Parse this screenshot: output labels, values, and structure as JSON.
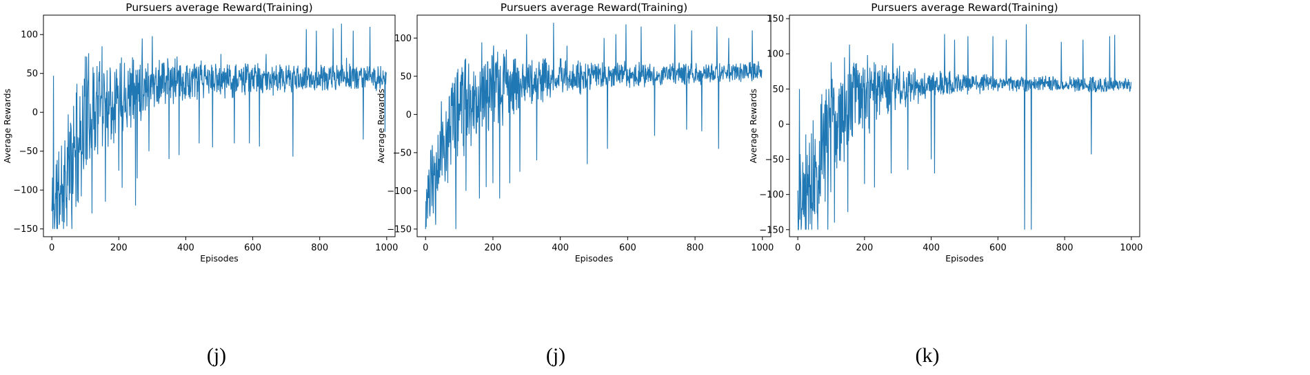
{
  "figure": {
    "panel_captions": [
      "(j)",
      "(j)",
      "(k)"
    ],
    "line_color": "#1f77b4"
  },
  "chart_data": [
    {
      "type": "line",
      "title": "Pursuers average Reward(Training)",
      "xlabel": "Episodes",
      "ylabel": "Average Rewards",
      "xlim": [
        -25,
        1025
      ],
      "ylim": [
        -160,
        125
      ],
      "xticks": [
        0,
        200,
        400,
        600,
        800,
        1000
      ],
      "yticks": [
        -150,
        -100,
        -50,
        0,
        50,
        100
      ],
      "grid": false,
      "legend": "none",
      "series": [
        {
          "anchors": [
            [
              0,
              -130
            ],
            [
              20,
              -110
            ],
            [
              40,
              -85
            ],
            [
              60,
              -60
            ],
            [
              80,
              -35
            ],
            [
              100,
              -10
            ],
            [
              120,
              5
            ],
            [
              150,
              15
            ],
            [
              200,
              25
            ],
            [
              250,
              32
            ],
            [
              300,
              38
            ],
            [
              350,
              40
            ],
            [
              400,
              40
            ],
            [
              500,
              42
            ],
            [
              600,
              43
            ],
            [
              700,
              42
            ],
            [
              800,
              44
            ],
            [
              900,
              45
            ],
            [
              1000,
              44
            ]
          ],
          "noise": [
            [
              0,
              60
            ],
            [
              100,
              65
            ],
            [
              200,
              45
            ],
            [
              300,
              28
            ],
            [
              500,
              18
            ],
            [
              700,
              15
            ],
            [
              1000,
              12
            ]
          ],
          "spikes": [
            [
              5,
              47
            ],
            [
              60,
              40
            ],
            [
              100,
              72
            ],
            [
              150,
              85
            ],
            [
              255,
              108
            ],
            [
              270,
              95
            ],
            [
              290,
              105
            ],
            [
              300,
              98
            ],
            [
              330,
              60
            ],
            [
              440,
              -40
            ],
            [
              505,
              75
            ],
            [
              545,
              -40
            ],
            [
              590,
              -40
            ],
            [
              620,
              -44
            ],
            [
              640,
              75
            ],
            [
              700,
              60
            ],
            [
              720,
              -57
            ],
            [
              760,
              107
            ],
            [
              790,
              105
            ],
            [
              840,
              108
            ],
            [
              865,
              114
            ],
            [
              880,
              70
            ],
            [
              900,
              105
            ],
            [
              930,
              -35
            ],
            [
              950,
              110
            ],
            [
              995,
              -25
            ],
            [
              60,
              -150
            ],
            [
              120,
              -130
            ],
            [
              160,
              -115
            ],
            [
              200,
              -75
            ],
            [
              210,
              -97
            ],
            [
              250,
              -120
            ],
            [
              255,
              -85
            ],
            [
              290,
              -50
            ],
            [
              350,
              -60
            ],
            [
              380,
              -55
            ],
            [
              480,
              -45
            ]
          ],
          "seed": 11
        }
      ]
    },
    {
      "type": "line",
      "title": "Pursuers average Reward(Training)",
      "xlabel": "Episodes",
      "ylabel": "Average Rewards",
      "xlim": [
        -25,
        1025
      ],
      "ylim": [
        -160,
        130
      ],
      "xticks": [
        0,
        200,
        400,
        600,
        800,
        1000
      ],
      "yticks": [
        -150,
        -100,
        -50,
        0,
        50,
        100
      ],
      "grid": false,
      "legend": "none",
      "series": [
        {
          "anchors": [
            [
              0,
              -120
            ],
            [
              20,
              -100
            ],
            [
              40,
              -60
            ],
            [
              60,
              -25
            ],
            [
              80,
              0
            ],
            [
              100,
              12
            ],
            [
              150,
              25
            ],
            [
              200,
              35
            ],
            [
              250,
              40
            ],
            [
              300,
              43
            ],
            [
              400,
              47
            ],
            [
              500,
              50
            ],
            [
              600,
              52
            ],
            [
              700,
              53
            ],
            [
              800,
              54
            ],
            [
              900,
              55
            ],
            [
              1000,
              58
            ]
          ],
          "noise": [
            [
              0,
              50
            ],
            [
              100,
              60
            ],
            [
              200,
              45
            ],
            [
              300,
              25
            ],
            [
              500,
              15
            ],
            [
              700,
              12
            ],
            [
              1000,
              10
            ]
          ],
          "spikes": [
            [
              120,
              90
            ],
            [
              200,
              88
            ],
            [
              240,
              85
            ],
            [
              300,
              105
            ],
            [
              380,
              120
            ],
            [
              420,
              90
            ],
            [
              480,
              98
            ],
            [
              530,
              100
            ],
            [
              565,
              105
            ],
            [
              595,
              118
            ],
            [
              640,
              115
            ],
            [
              740,
              118
            ],
            [
              790,
              110
            ],
            [
              865,
              115
            ],
            [
              900,
              100
            ],
            [
              970,
              110
            ],
            [
              90,
              -150
            ],
            [
              120,
              -100
            ],
            [
              160,
              -110
            ],
            [
              180,
              -95
            ],
            [
              200,
              -90
            ],
            [
              220,
              -110
            ],
            [
              250,
              -90
            ],
            [
              280,
              -75
            ],
            [
              330,
              -60
            ],
            [
              480,
              -65
            ],
            [
              540,
              -45
            ],
            [
              680,
              -28
            ],
            [
              775,
              -20
            ],
            [
              820,
              -22
            ],
            [
              870,
              -45
            ]
          ],
          "seed": 23
        }
      ]
    },
    {
      "type": "line",
      "title": "Pursuers average Reward(Training)",
      "xlabel": "Episodes",
      "ylabel": "Average Rewards",
      "xlim": [
        -25,
        1025
      ],
      "ylim": [
        -160,
        155
      ],
      "xticks": [
        0,
        200,
        400,
        600,
        800,
        1000
      ],
      "yticks": [
        -150,
        -100,
        -50,
        0,
        50,
        100,
        150
      ],
      "grid": false,
      "legend": "none",
      "series": [
        {
          "anchors": [
            [
              0,
              -120
            ],
            [
              20,
              -100
            ],
            [
              40,
              -80
            ],
            [
              60,
              -50
            ],
            [
              80,
              -25
            ],
            [
              100,
              0
            ],
            [
              120,
              15
            ],
            [
              160,
              28
            ],
            [
              200,
              40
            ],
            [
              250,
              48
            ],
            [
              300,
              52
            ],
            [
              400,
              56
            ],
            [
              500,
              58
            ],
            [
              600,
              58
            ],
            [
              700,
              58
            ],
            [
              800,
              57
            ],
            [
              900,
              56
            ],
            [
              1000,
              56
            ]
          ],
          "noise": [
            [
              0,
              60
            ],
            [
              100,
              70
            ],
            [
              200,
              45
            ],
            [
              300,
              25
            ],
            [
              400,
              15
            ],
            [
              600,
              10
            ],
            [
              1000,
              8
            ]
          ],
          "spikes": [
            [
              5,
              50
            ],
            [
              100,
              88
            ],
            [
              140,
              95
            ],
            [
              155,
              113
            ],
            [
              200,
              120
            ],
            [
              285,
              115
            ],
            [
              330,
              78
            ],
            [
              440,
              128
            ],
            [
              470,
              120
            ],
            [
              510,
              125
            ],
            [
              585,
              125
            ],
            [
              625,
              120
            ],
            [
              680,
              128
            ],
            [
              685,
              142
            ],
            [
              700,
              130
            ],
            [
              790,
              117
            ],
            [
              855,
              120
            ],
            [
              935,
              125
            ],
            [
              950,
              127
            ],
            [
              60,
              -150
            ],
            [
              90,
              -150
            ],
            [
              110,
              -140
            ],
            [
              150,
              -125
            ],
            [
              200,
              -85
            ],
            [
              230,
              -90
            ],
            [
              280,
              -70
            ],
            [
              330,
              -65
            ],
            [
              400,
              -50
            ],
            [
              410,
              -70
            ],
            [
              680,
              -150
            ],
            [
              700,
              -150
            ],
            [
              880,
              -43
            ]
          ],
          "seed": 37
        }
      ]
    }
  ]
}
